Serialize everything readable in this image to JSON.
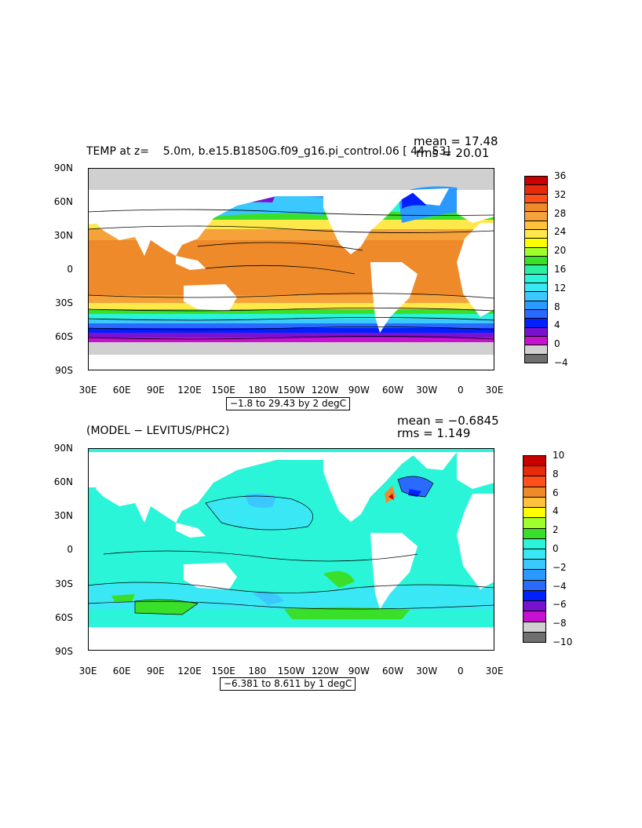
{
  "top": {
    "title_left": "TEMP at z=    5.0m, b.e15.B1850G.f09_g16.pi_control.06 [ 44- 53]",
    "mean_label": "mean = 17.48",
    "rms_label": "rms = 20.01",
    "range_label": "−1.8 to 29.43 by 2 degC",
    "colorbar": {
      "labels": [
        "36",
        "32",
        "28",
        "24",
        "20",
        "16",
        "12",
        "8",
        "4",
        "0",
        "−4"
      ],
      "colors": [
        "#c80000",
        "#e82a0a",
        "#ff4f1a",
        "#ef8a2a",
        "#f5a23a",
        "#ffc23a",
        "#ffe84a",
        "#ffff00",
        "#a0ff2a",
        "#3adf2a",
        "#2aefa0",
        "#2af5d8",
        "#3ae8f5",
        "#3ac8ff",
        "#2a9aff",
        "#2a6aff",
        "#0020ff",
        "#7a10d0",
        "#c810d0",
        "#d0d0d0",
        "#6f6f6f"
      ]
    }
  },
  "bottom": {
    "title_left": "(MODEL − LEVITUS/PHC2)",
    "mean_label": "mean = −0.6845",
    "rms_label": "rms = 1.149",
    "range_label": "−6.381 to 8.611 by 1 degC",
    "colorbar": {
      "labels": [
        "10",
        "8",
        "6",
        "4",
        "2",
        "0",
        "−2",
        "−4",
        "−6",
        "−8",
        "−10"
      ],
      "colors": [
        "#c80000",
        "#e82a0a",
        "#ff4f1a",
        "#ef8a2a",
        "#ffc23a",
        "#ffff00",
        "#a0ff2a",
        "#3adf2a",
        "#2af5d8",
        "#3ae8f5",
        "#3ac8ff",
        "#2a9aff",
        "#2a6aff",
        "#0020ff",
        "#7a10d0",
        "#c810d0",
        "#d0d0d0",
        "#6f6f6f"
      ]
    }
  },
  "axes": {
    "lat_labels": [
      "90N",
      "60N",
      "30N",
      "0",
      "30S",
      "60S",
      "90S"
    ],
    "lon_labels": [
      "30E",
      "60E",
      "90E",
      "120E",
      "150E",
      "180",
      "150W",
      "120W",
      "90W",
      "60W",
      "30W",
      "0",
      "30E"
    ]
  }
}
